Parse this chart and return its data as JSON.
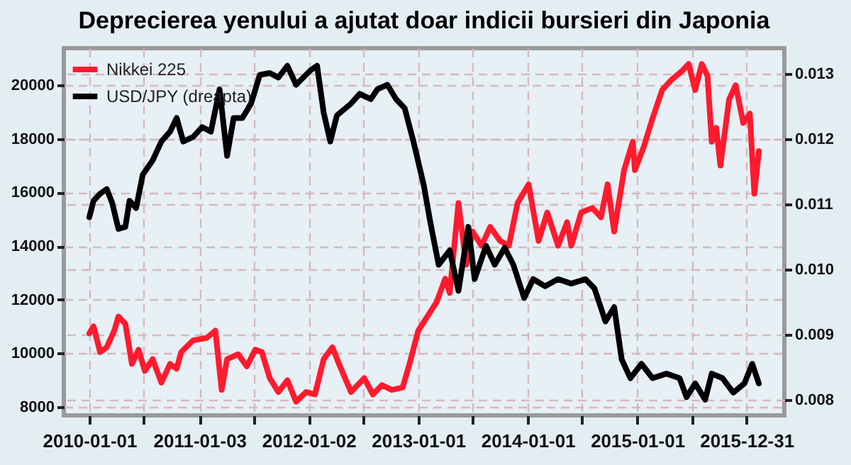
{
  "chart_data": {
    "type": "line",
    "title": "Deprecierea yenului a ajutat doar indicii bursieri din Japonia",
    "xlim": [
      "2009-10-08",
      "2016-05-05"
    ],
    "xticks": [
      {
        "value": "2010-01-01",
        "label": "2010-01-01"
      },
      {
        "value": "2010-07-02",
        "label": null
      },
      {
        "value": "2011-01-03",
        "label": "2011-01-03"
      },
      {
        "value": "2011-07-04",
        "label": null
      },
      {
        "value": "2012-01-02",
        "label": "2012-01-02"
      },
      {
        "value": "2012-07-02",
        "label": null
      },
      {
        "value": "2013-01-01",
        "label": "2013-01-01"
      },
      {
        "value": "2013-07-01",
        "label": null
      },
      {
        "value": "2014-01-01",
        "label": "2014-01-01"
      },
      {
        "value": "2014-07-01",
        "label": null
      },
      {
        "value": "2015-01-01",
        "label": "2015-01-01"
      },
      {
        "value": "2015-07-01",
        "label": null
      },
      {
        "value": "2015-12-31",
        "label": "2015-12-31"
      }
    ],
    "ylim": [
      7680,
      21380
    ],
    "yticks": [
      8000,
      10000,
      12000,
      14000,
      16000,
      18000,
      20000
    ],
    "y2lim": [
      0.00776,
      0.01339
    ],
    "y2ticks": [
      0.008,
      0.009,
      {
        "value": 0.01,
        "label": "0.010"
      },
      0.011,
      0.012,
      0.013
    ],
    "grid": true,
    "legend": "top left",
    "line_style": "solid",
    "series": [
      {
        "name": "Nikkei 225",
        "color": "#ff1a2e",
        "x": [
          "2010-01-01",
          "2010-01-15",
          "2010-02-06",
          "2010-02-28",
          "2010-03-25",
          "2010-04-08",
          "2010-05-01",
          "2010-05-23",
          "2010-06-14",
          "2010-07-05",
          "2010-07-31",
          "2010-08-29",
          "2010-09-27",
          "2010-10-19",
          "2010-11-03",
          "2010-12-13",
          "2011-01-27",
          "2011-02-25",
          "2011-03-18",
          "2011-04-05",
          "2011-05-12",
          "2011-06-10",
          "2011-07-08",
          "2011-07-30",
          "2011-08-25",
          "2011-09-23",
          "2011-10-23",
          "2011-11-21",
          "2011-12-24",
          "2012-01-23",
          "2012-02-21",
          "2012-03-21",
          "2012-04-12",
          "2012-05-22",
          "2012-07-05",
          "2012-08-03",
          "2012-09-02",
          "2012-10-05",
          "2012-11-10",
          "2012-12-03",
          "2013-01-01",
          "2013-03-03",
          "2013-04-01",
          "2013-04-16",
          "2013-05-15",
          "2013-06-10",
          "2013-07-01",
          "2013-07-31",
          "2013-08-29",
          "2013-10-01",
          "2013-10-30",
          "2013-11-28",
          "2014-01-04",
          "2014-02-06",
          "2014-03-07",
          "2014-04-12",
          "2014-05-12",
          "2014-05-26",
          "2014-06-28",
          "2014-08-04",
          "2014-09-02",
          "2014-09-24",
          "2014-10-16",
          "2014-11-18",
          "2014-12-17",
          "2014-12-24",
          "2015-01-23",
          "2015-02-21",
          "2015-03-25",
          "2015-04-23",
          "2015-05-30",
          "2015-06-21",
          "2015-07-13",
          "2015-08-04",
          "2015-08-23",
          "2015-09-06",
          "2015-09-21",
          "2015-10-05",
          "2015-11-03",
          "2015-11-25",
          "2015-12-20",
          "2016-01-11",
          "2016-01-26",
          "2016-02-10"
        ],
        "values": [
          10740,
          11000,
          10040,
          10220,
          10840,
          11370,
          11100,
          9600,
          10130,
          9340,
          9780,
          8900,
          9600,
          9420,
          10040,
          10480,
          10570,
          10840,
          8630,
          9780,
          9960,
          9510,
          10130,
          10040,
          9080,
          8550,
          8990,
          8190,
          8550,
          8460,
          9780,
          10220,
          9600,
          8550,
          9070,
          8460,
          8810,
          8630,
          8720,
          9600,
          10840,
          11900,
          12780,
          12250,
          15600,
          13300,
          14540,
          14010,
          14710,
          14190,
          14010,
          15600,
          16300,
          14190,
          15250,
          14010,
          14890,
          14010,
          15250,
          15420,
          15070,
          16300,
          14540,
          16830,
          17890,
          16830,
          17710,
          18770,
          19820,
          20180,
          20530,
          20790,
          19820,
          20790,
          20350,
          17890,
          18410,
          17000,
          19470,
          20000,
          18590,
          18940,
          15950,
          17540
        ]
      },
      {
        "name": "USD/JPY (dreapta)",
        "color": "#000000",
        "axis": "y2",
        "x": [
          "2010-01-01",
          "2010-01-15",
          "2010-02-06",
          "2010-02-28",
          "2010-03-18",
          "2010-04-08",
          "2010-05-01",
          "2010-05-15",
          "2010-06-06",
          "2010-06-28",
          "2010-07-31",
          "2010-08-29",
          "2010-09-27",
          "2010-10-19",
          "2010-11-10",
          "2010-12-13",
          "2011-01-12",
          "2011-02-10",
          "2011-03-11",
          "2011-04-05",
          "2011-04-27",
          "2011-05-26",
          "2011-06-24",
          "2011-07-23",
          "2011-08-25",
          "2011-09-23",
          "2011-10-23",
          "2011-11-21",
          "2012-01-08",
          "2012-01-30",
          "2012-02-21",
          "2012-03-14",
          "2012-04-05",
          "2012-05-22",
          "2012-06-20",
          "2012-07-27",
          "2012-08-18",
          "2012-09-20",
          "2012-10-19",
          "2012-11-17",
          "2012-12-16",
          "2013-01-19",
          "2013-02-10",
          "2013-03-10",
          "2013-04-16",
          "2013-05-15",
          "2013-06-17",
          "2013-07-08",
          "2013-08-15",
          "2013-09-13",
          "2013-10-16",
          "2013-11-14",
          "2013-12-20",
          "2014-01-19",
          "2014-02-28",
          "2014-04-12",
          "2014-05-26",
          "2014-07-12",
          "2014-08-11",
          "2014-09-17",
          "2014-10-16",
          "2014-11-10",
          "2014-12-09",
          "2015-01-15",
          "2015-02-21",
          "2015-04-08",
          "2015-05-22",
          "2015-06-14",
          "2015-07-13",
          "2015-08-15",
          "2015-09-06",
          "2015-10-12",
          "2015-11-17",
          "2015-12-24",
          "2016-01-19",
          "2016-02-10"
        ],
        "values": [
          0.0108,
          0.01105,
          0.01116,
          0.01123,
          0.01102,
          0.01062,
          0.01065,
          0.01105,
          0.01094,
          0.01145,
          0.01167,
          0.01196,
          0.01211,
          0.01232,
          0.01196,
          0.01203,
          0.01218,
          0.01211,
          0.01276,
          0.01174,
          0.01232,
          0.01232,
          0.01254,
          0.01298,
          0.01301,
          0.01294,
          0.01312,
          0.01283,
          0.01305,
          0.01312,
          0.0124,
          0.01196,
          0.01236,
          0.01254,
          0.01269,
          0.01261,
          0.01276,
          0.01283,
          0.01261,
          0.01247,
          0.01196,
          0.0113,
          0.01073,
          0.01007,
          0.01029,
          0.00967,
          0.01065,
          0.00985,
          0.01036,
          0.01007,
          0.01033,
          0.01007,
          0.00956,
          0.00985,
          0.00974,
          0.00985,
          0.00978,
          0.00985,
          0.00971,
          0.0092,
          0.00942,
          0.00862,
          0.00833,
          0.00855,
          0.00833,
          0.0084,
          0.00833,
          0.00804,
          0.00825,
          0.008,
          0.0084,
          0.00833,
          0.00811,
          0.00825,
          0.00855,
          0.00825
        ]
      }
    ]
  }
}
